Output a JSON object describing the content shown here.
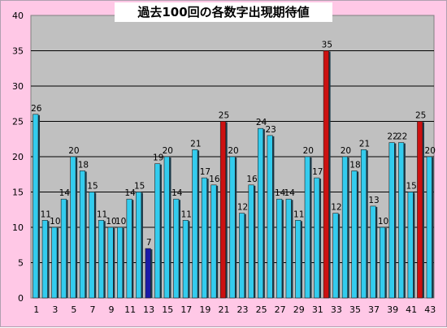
{
  "chart_data": {
    "type": "bar",
    "title": "過去100回の各数字出現期待値",
    "xlabel": "",
    "ylabel": "",
    "ylim": [
      0,
      40
    ],
    "y_ticks": [
      0,
      5,
      10,
      15,
      20,
      25,
      30,
      35,
      40
    ],
    "grid": true,
    "legend": "none",
    "categories": [
      "1",
      "2",
      "3",
      "4",
      "5",
      "6",
      "7",
      "8",
      "9",
      "10",
      "11",
      "12",
      "13",
      "14",
      "15",
      "16",
      "17",
      "18",
      "19",
      "20",
      "21",
      "22",
      "23",
      "24",
      "25",
      "26",
      "27",
      "28",
      "29",
      "30",
      "31",
      "32",
      "33",
      "34",
      "35",
      "36",
      "37",
      "38",
      "39",
      "40",
      "41",
      "42",
      "43"
    ],
    "x_tick_labels": [
      "1",
      "3",
      "5",
      "7",
      "9",
      "11",
      "13",
      "15",
      "17",
      "19",
      "21",
      "23",
      "25",
      "27",
      "29",
      "31",
      "33",
      "35",
      "37",
      "39",
      "41",
      "43"
    ],
    "values": [
      26,
      11,
      10,
      14,
      20,
      18,
      15,
      11,
      10,
      10,
      14,
      15,
      7,
      19,
      20,
      14,
      11,
      21,
      17,
      16,
      25,
      20,
      12,
      16,
      24,
      23,
      14,
      14,
      11,
      20,
      17,
      35,
      12,
      20,
      18,
      21,
      13,
      10,
      22,
      22,
      15,
      25,
      20
    ],
    "colors": {
      "normal": "#33ccee",
      "high": "#cc1111",
      "low": "#1a1aa8",
      "plot_background": "#c0c0c0",
      "chart_background": "#ffc8e6"
    },
    "bar_highlight": [
      "normal",
      "normal",
      "normal",
      "normal",
      "normal",
      "normal",
      "normal",
      "normal",
      "normal",
      "normal",
      "normal",
      "normal",
      "low",
      "normal",
      "normal",
      "normal",
      "normal",
      "normal",
      "normal",
      "normal",
      "high",
      "normal",
      "normal",
      "normal",
      "normal",
      "normal",
      "normal",
      "normal",
      "normal",
      "normal",
      "normal",
      "high",
      "normal",
      "normal",
      "normal",
      "normal",
      "normal",
      "normal",
      "normal",
      "normal",
      "normal",
      "high",
      "normal"
    ]
  }
}
